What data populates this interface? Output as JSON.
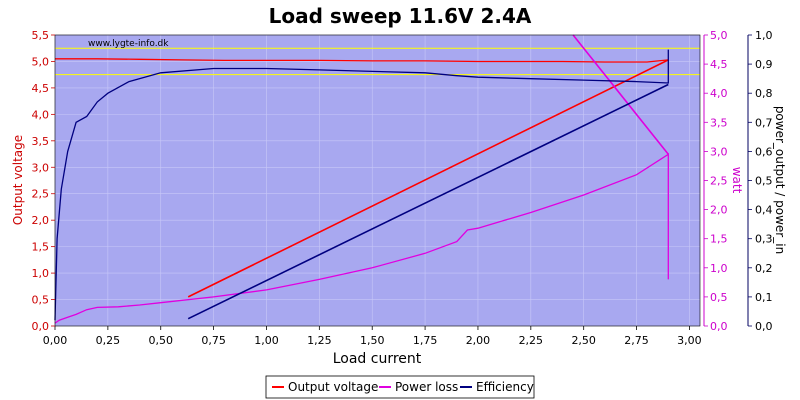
{
  "chart_data": {
    "type": "line",
    "title": "Load sweep 11.6V 2.4A",
    "watermark": "www.lygte-info.dk",
    "xlabel": "Load current",
    "ylabel_left": "Output voltage",
    "ylabel_right1": "watt",
    "ylabel_right2": "power_output / power_in",
    "xlim": [
      0,
      3.05
    ],
    "ylim_left": [
      0,
      5.5
    ],
    "ylim_right1": [
      0,
      5.0
    ],
    "ylim_right2": [
      0,
      1.0
    ],
    "x_ticks": [
      "0,00",
      "0,25",
      "0,50",
      "0,75",
      "1,00",
      "1,25",
      "1,50",
      "1,75",
      "2,00",
      "2,25",
      "2,50",
      "2,75",
      "3,00"
    ],
    "y_left_ticks": [
      "0,0",
      "0,5",
      "1,0",
      "1,5",
      "2,0",
      "2,5",
      "3,0",
      "3,5",
      "4,0",
      "4,5",
      "5,0",
      "5,5"
    ],
    "y_right1_ticks": [
      "0,0",
      "0,5",
      "1,0",
      "1,5",
      "2,0",
      "2,5",
      "3,0",
      "3,5",
      "4,0",
      "4,5",
      "5,0"
    ],
    "y_right2_ticks": [
      "0,0",
      "0,1",
      "0,2",
      "0,3",
      "0,4",
      "0,5",
      "0,6",
      "0,7",
      "0,8",
      "0,9",
      "1,0"
    ],
    "reference_lines_left": [
      5.25,
      4.75
    ],
    "grid": true,
    "legend_position": "bottom-center",
    "colors": {
      "plot_bg": "#a8a8f0",
      "grid": "#c8c8f8",
      "voltage": "#ff0000",
      "power": "#e000e0",
      "efficiency": "#000080",
      "reference": "#ffff00",
      "left_axis": "#cc0000",
      "right1_axis": "#cc00cc",
      "right2_axis": "#000060"
    },
    "series": [
      {
        "name": "Output voltage",
        "axis": "left",
        "points": [
          [
            0,
            5.05
          ],
          [
            0.2,
            5.05
          ],
          [
            0.4,
            5.04
          ],
          [
            0.6,
            5.03
          ],
          [
            0.8,
            5.02
          ],
          [
            1.0,
            5.02
          ],
          [
            1.25,
            5.02
          ],
          [
            1.5,
            5.01
          ],
          [
            1.75,
            5.01
          ],
          [
            2.0,
            5.0
          ],
          [
            2.2,
            5.0
          ],
          [
            2.4,
            5.0
          ],
          [
            2.6,
            4.99
          ],
          [
            2.8,
            4.99
          ],
          [
            2.9,
            5.03
          ]
        ],
        "return_points": [
          [
            2.9,
            5.03
          ],
          [
            0.63,
            0.55
          ]
        ]
      },
      {
        "name": "Power loss",
        "axis": "right1",
        "points": [
          [
            0,
            0.05
          ],
          [
            0.02,
            0.1
          ],
          [
            0.06,
            0.15
          ],
          [
            0.1,
            0.2
          ],
          [
            0.15,
            0.28
          ],
          [
            0.2,
            0.32
          ],
          [
            0.3,
            0.33
          ],
          [
            0.4,
            0.36
          ],
          [
            0.5,
            0.4
          ],
          [
            0.75,
            0.5
          ],
          [
            1.0,
            0.62
          ],
          [
            1.25,
            0.8
          ],
          [
            1.5,
            1.0
          ],
          [
            1.75,
            1.25
          ],
          [
            1.9,
            1.45
          ],
          [
            1.95,
            1.65
          ],
          [
            2.0,
            1.68
          ],
          [
            2.25,
            1.95
          ],
          [
            2.5,
            2.25
          ],
          [
            2.75,
            2.6
          ],
          [
            2.9,
            2.95
          ],
          [
            2.9,
            0.8
          ]
        ],
        "return_points": [
          [
            2.9,
            2.95
          ],
          [
            2.45,
            5.0
          ]
        ]
      },
      {
        "name": "Efficiency",
        "axis": "right2",
        "points": [
          [
            0,
            0.02
          ],
          [
            0.01,
            0.3
          ],
          [
            0.03,
            0.47
          ],
          [
            0.06,
            0.6
          ],
          [
            0.1,
            0.7
          ],
          [
            0.15,
            0.72
          ],
          [
            0.2,
            0.77
          ],
          [
            0.25,
            0.8
          ],
          [
            0.35,
            0.84
          ],
          [
            0.5,
            0.87
          ],
          [
            0.75,
            0.885
          ],
          [
            1.0,
            0.885
          ],
          [
            1.25,
            0.88
          ],
          [
            1.5,
            0.875
          ],
          [
            1.75,
            0.87
          ],
          [
            1.9,
            0.86
          ],
          [
            2.0,
            0.855
          ],
          [
            2.25,
            0.85
          ],
          [
            2.5,
            0.845
          ],
          [
            2.75,
            0.84
          ],
          [
            2.9,
            0.835
          ],
          [
            2.9,
            0.95
          ]
        ],
        "return_points": [
          [
            2.9,
            0.83
          ],
          [
            0.63,
            0.025
          ]
        ]
      }
    ]
  }
}
